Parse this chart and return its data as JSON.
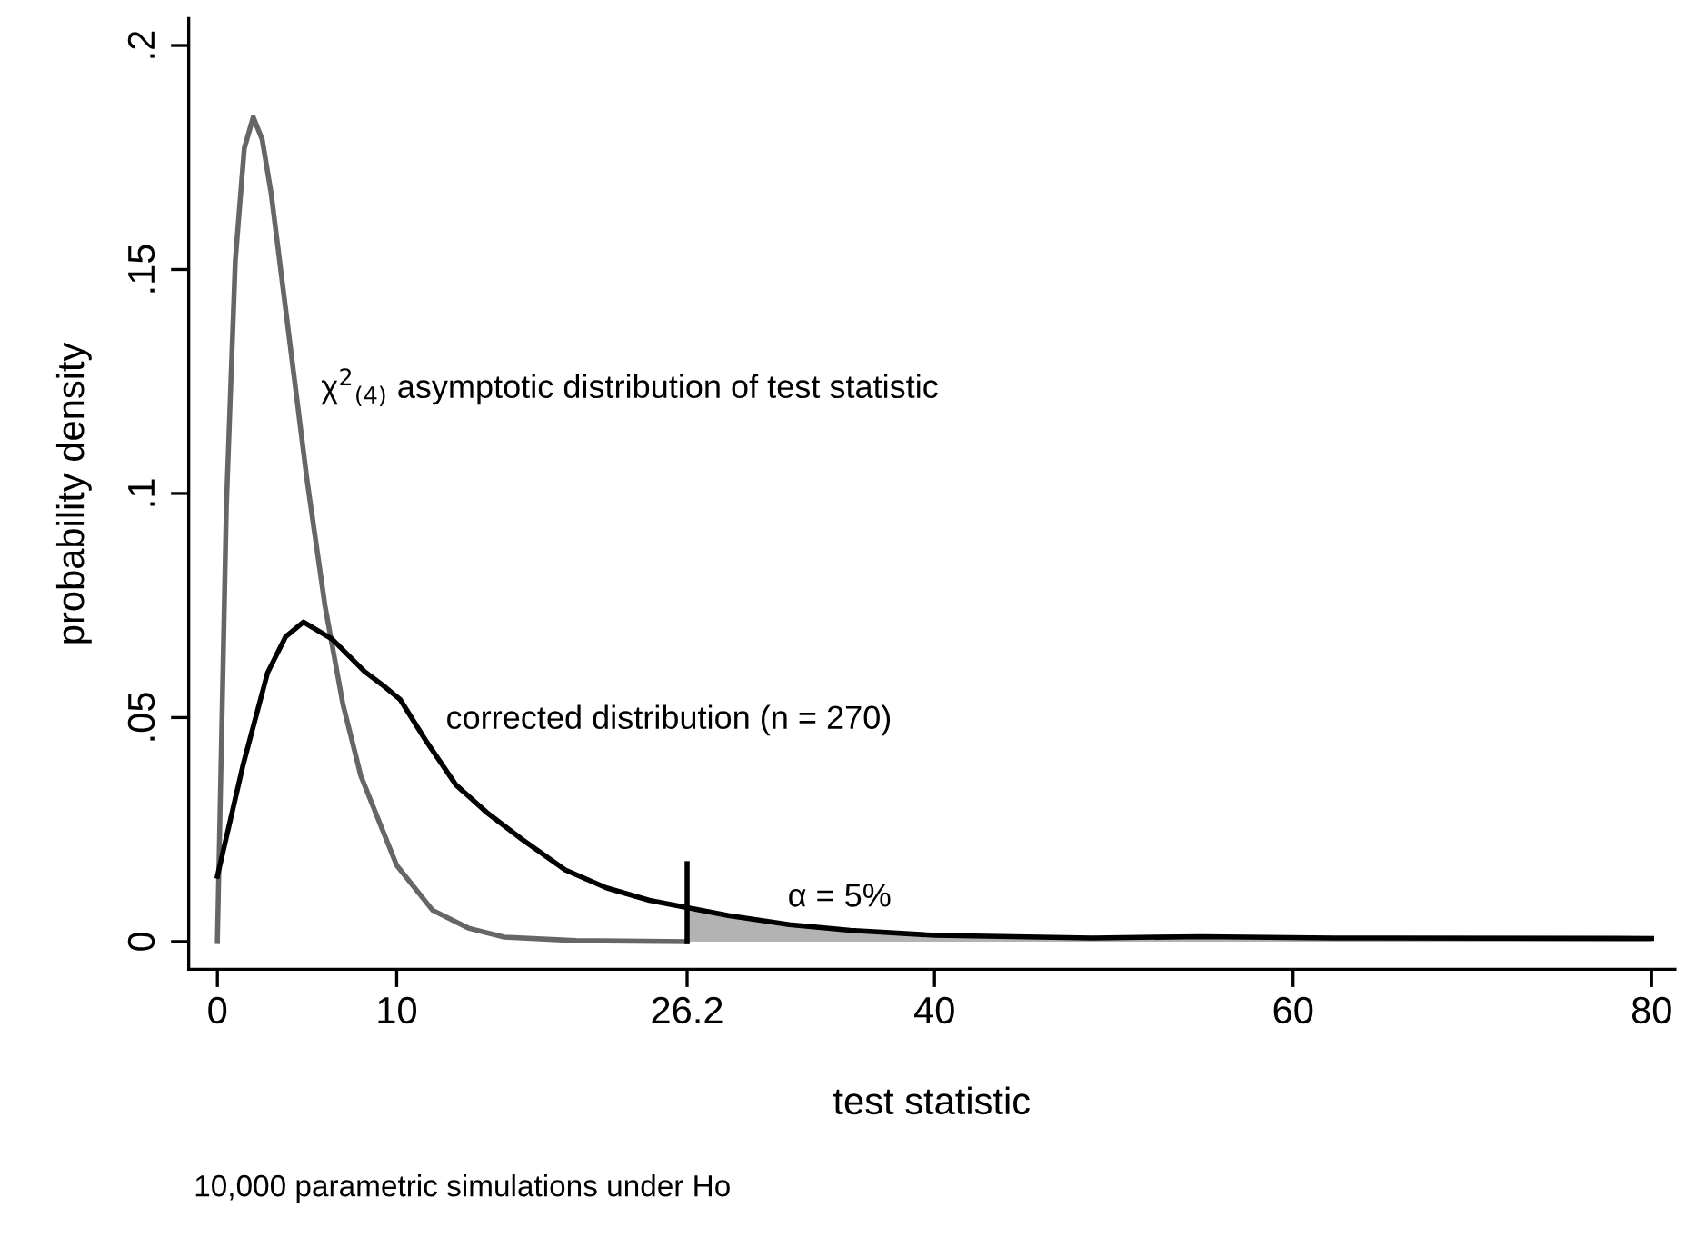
{
  "chart_data": {
    "type": "line",
    "xlabel": "test statistic",
    "ylabel": "probability density",
    "xlim": [
      -1.6,
      81.3
    ],
    "ylim": [
      -0.0062,
      0.206
    ],
    "xticks": [
      0,
      10,
      26.2,
      40,
      60,
      80
    ],
    "yticks": [
      {
        "value": 0,
        "label": "0"
      },
      {
        "value": 0.05,
        "label": ".05"
      },
      {
        "value": 0.1,
        "label": ".1"
      },
      {
        "value": 0.15,
        "label": ".15"
      },
      {
        "value": 0.2,
        "label": ".2"
      }
    ],
    "grid": false,
    "legend": false,
    "series": [
      {
        "type": "area",
        "color": "#b3b3b3",
        "x": [
          26.2,
          28.5,
          31.9,
          35.3,
          40,
          48.8,
          54.9,
          62.3,
          80
        ],
        "values": [
          0.0076,
          0.0058,
          0.0038,
          0.0025,
          0.0014,
          0.0008,
          0.0011,
          0.0008,
          0.0007
        ]
      },
      {
        "color": "#666666",
        "x": [
          0,
          0.5,
          1,
          1.5,
          2,
          2.5,
          3,
          4,
          5,
          6,
          7,
          8,
          10,
          12,
          14,
          16,
          20,
          26.2
        ],
        "values": [
          0,
          0.097,
          0.152,
          0.177,
          0.184,
          0.179,
          0.167,
          0.135,
          0.103,
          0.075,
          0.053,
          0.037,
          0.017,
          0.007,
          0.003,
          0.001,
          0.0002,
          0
        ]
      },
      {
        "color": "#000000",
        "x": [
          0,
          1.45,
          2.8,
          3.8,
          4.8,
          6.4,
          8.2,
          9.2,
          10.2,
          11.6,
          13.3,
          15,
          17,
          19.4,
          21.7,
          24.1,
          26.2,
          28.5,
          31.9,
          35.3,
          40,
          48.8,
          54.9,
          62.3,
          80
        ],
        "values": [
          0.0146,
          0.0397,
          0.06,
          0.068,
          0.0713,
          0.0675,
          0.0603,
          0.0573,
          0.054,
          0.045,
          0.035,
          0.0289,
          0.0228,
          0.016,
          0.012,
          0.0092,
          0.0076,
          0.0058,
          0.0038,
          0.0025,
          0.0014,
          0.0008,
          0.0011,
          0.0008,
          0.0007
        ]
      },
      {
        "color": "#000000",
        "x": [
          26.2,
          26.2
        ],
        "values": [
          0,
          0.0174
        ]
      }
    ],
    "annotations": [
      "χ$^{2}$$_{(4)}$ asymptotic distribution of test statistic",
      "corrected distribution (n = 270)",
      "α = 5%",
      "10,000 parametric simulations under Ho"
    ]
  }
}
